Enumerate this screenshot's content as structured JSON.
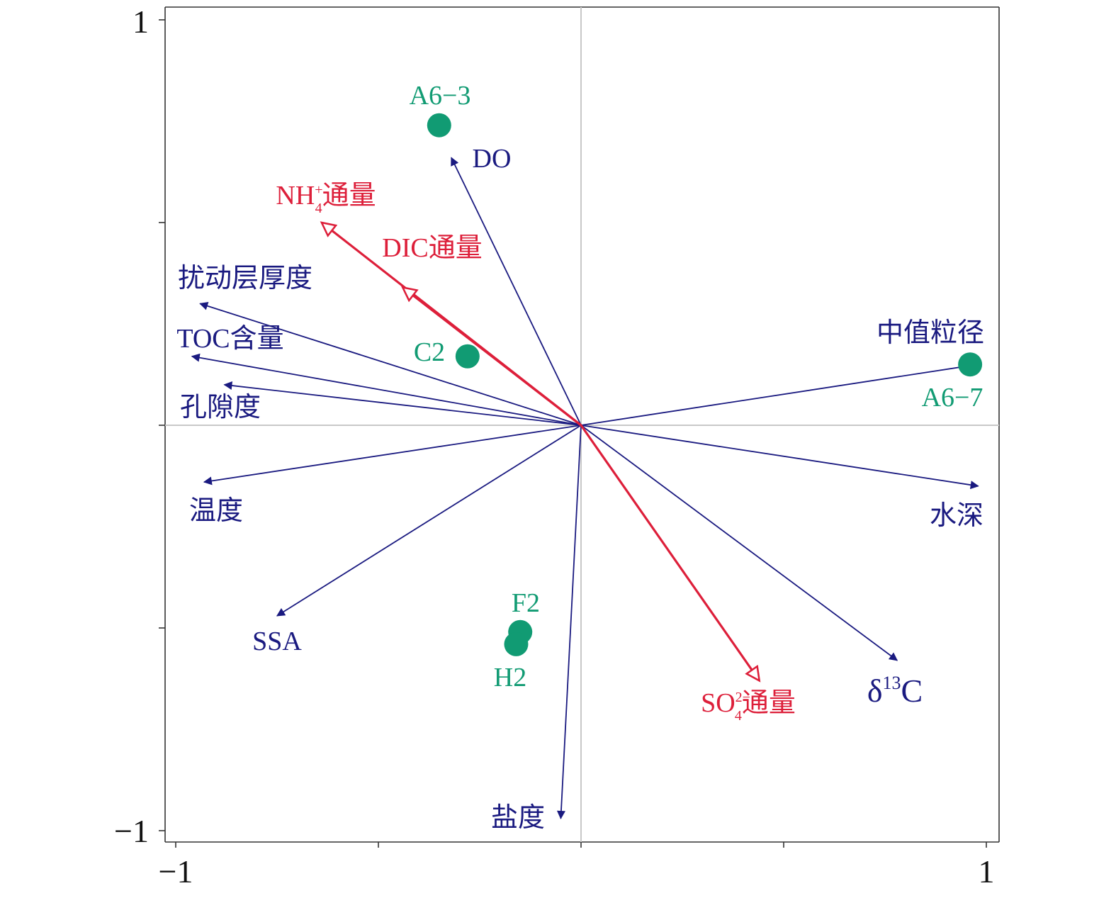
{
  "chart_data": {
    "type": "scatter",
    "title": "",
    "xlabel": "",
    "ylabel": "",
    "xlim": [
      -1,
      1
    ],
    "ylim": [
      -1,
      1
    ],
    "x_tick_labels": [
      "−1",
      "1"
    ],
    "y_tick_labels": [
      "1",
      "−1"
    ],
    "grid": false,
    "reference_lines": [
      0,
      0
    ],
    "colors": {
      "env_arrow": "#1a1a80",
      "response_arrow": "#dd1f3a",
      "sample": "#119b73",
      "reference_line": "#c8c8c8",
      "frame": "#333333"
    },
    "env_arrows": [
      {
        "label": "DO",
        "x": -0.32,
        "y": 0.66
      },
      {
        "label": "扰动层厚度",
        "x": -0.94,
        "y": 0.3
      },
      {
        "label": "TOC含量",
        "x": -0.96,
        "y": 0.17
      },
      {
        "label": "孔隙度",
        "x": -0.88,
        "y": 0.1
      },
      {
        "label": "温度",
        "x": -0.93,
        "y": -0.14
      },
      {
        "label": "SSA",
        "x": -0.75,
        "y": -0.47
      },
      {
        "label": "盐度",
        "x": -0.05,
        "y": -0.97
      },
      {
        "label": "δ13C",
        "x": 0.78,
        "y": -0.58
      },
      {
        "label": "水深",
        "x": 0.98,
        "y": -0.15
      },
      {
        "label": "中值粒径",
        "x": 0.98,
        "y": 0.15
      }
    ],
    "response_arrows": [
      {
        "label": "NH4+通量",
        "label_main": "NH",
        "label_sup": "+",
        "label_sub": "4",
        "label_tail": "通量",
        "x": -0.64,
        "y": 0.5
      },
      {
        "label": "DIC通量",
        "x": -0.44,
        "y": 0.34
      },
      {
        "label": "SO42−通量",
        "label_main": "SO",
        "label_sup": "2−",
        "label_sub": "4",
        "label_tail": "通量",
        "x": 0.44,
        "y": -0.63
      }
    ],
    "samples": [
      {
        "label": "A6−3",
        "x": -0.35,
        "y": 0.74
      },
      {
        "label": "C2",
        "x": -0.28,
        "y": 0.17
      },
      {
        "label": "A6−7",
        "x": 0.96,
        "y": 0.15
      },
      {
        "label": "F2",
        "x": -0.15,
        "y": -0.51
      },
      {
        "label": "H2",
        "x": -0.16,
        "y": -0.54
      }
    ]
  }
}
